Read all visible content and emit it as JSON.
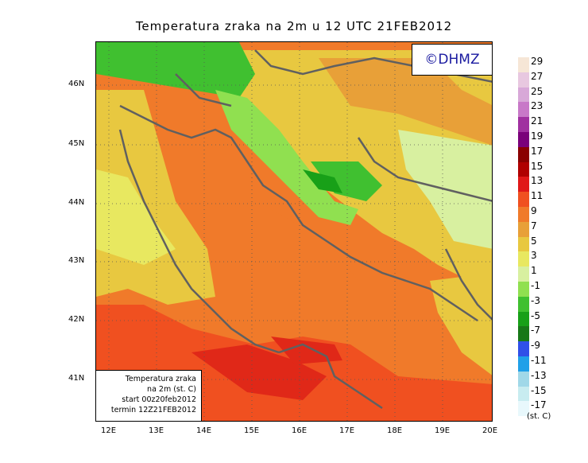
{
  "title": "Temperatura zraka na 2m u 12 UTC 21FEB2012",
  "copyright": "©DHMZ",
  "infobox": {
    "line1": "Temperatura zraka",
    "line2": "na 2m (st. C)",
    "line3": "start 00z20feb2012",
    "line4": "termin 12Z21FEB2012"
  },
  "lat_labels": [
    "46N",
    "45N",
    "44N",
    "43N",
    "42N",
    "41N"
  ],
  "lon_labels": [
    "12E",
    "13E",
    "14E",
    "15E",
    "16E",
    "17E",
    "18E",
    "19E",
    "20E"
  ],
  "legend": {
    "unit": "(st. C)",
    "labels": [
      "29",
      "27",
      "25",
      "23",
      "21",
      "19",
      "17",
      "15",
      "13",
      "11",
      "9",
      "7",
      "5",
      "3",
      "1",
      "-1",
      "-3",
      "-5",
      "-7",
      "-9",
      "-11",
      "-13",
      "-15",
      "-17"
    ],
    "colors": [
      "#f6e6d6",
      "#e8c8e0",
      "#d8a8d8",
      "#c878c8",
      "#a030a0",
      "#7a007a",
      "#8a0000",
      "#b00000",
      "#e01818",
      "#f05020",
      "#f07a2a",
      "#e8a038",
      "#e8c840",
      "#e8e860",
      "#d8f0a0",
      "#90e050",
      "#40c030",
      "#18a018",
      "#187818",
      "#3050e8",
      "#20a0e8",
      "#a0d8e8",
      "#c8ecf0",
      "#e8f8fc"
    ]
  },
  "colors": {
    "sea_warm": "#f07a2a",
    "sea_hot": "#f05020",
    "land_mild": "#e8c840",
    "land_cool": "#d8f0a0",
    "mountain": "#40c030",
    "coast_line": "#606060"
  }
}
